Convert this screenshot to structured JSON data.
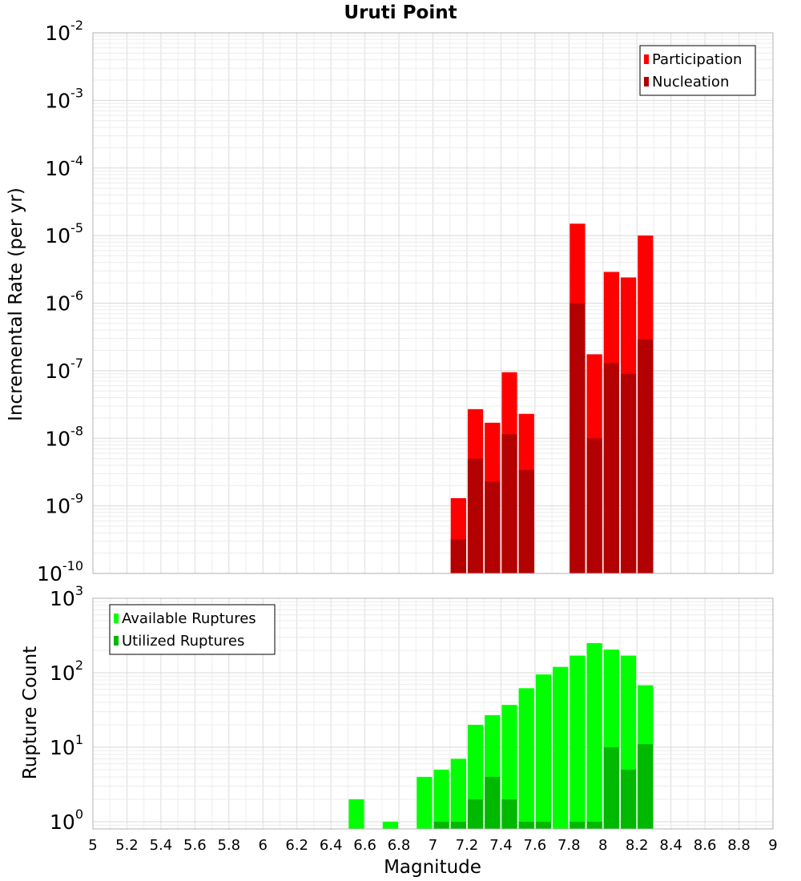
{
  "chart_data": [
    {
      "type": "bar",
      "title": "Uruti Point",
      "ylabel": "Incremental Rate (per yr)",
      "xlabel": "",
      "yscale": "log",
      "ylim": [
        1e-10,
        0.01
      ],
      "xlim": [
        5,
        9
      ],
      "legend_position": "top-right",
      "x": [
        7.15,
        7.25,
        7.35,
        7.45,
        7.55,
        7.85,
        7.95,
        8.05,
        8.15,
        8.25
      ],
      "series": [
        {
          "name": "Participation",
          "color": "#ff0000",
          "values": [
            1.3e-09,
            2.7e-08,
            1.7e-08,
            9.5e-08,
            2.3e-08,
            1.5e-05,
            1.75e-07,
            2.9e-06,
            2.4e-06,
            1e-05
          ]
        },
        {
          "name": "Nucleation",
          "color": "#b30000",
          "values": [
            3.2e-10,
            5e-09,
            2.3e-09,
            1.15e-08,
            3.4e-09,
            1e-06,
            1e-08,
            1.3e-07,
            9e-08,
            2.9e-07
          ]
        }
      ],
      "ytick_exponents": [
        "-10",
        "-9",
        "-8",
        "-7",
        "-6",
        "-5",
        "-4",
        "-3",
        "-2"
      ],
      "grid": true
    },
    {
      "type": "bar",
      "ylabel": "Rupture Count",
      "xlabel": "Magnitude",
      "yscale": "log",
      "ylim": [
        0.8,
        1000
      ],
      "xlim": [
        5,
        9
      ],
      "legend_position": "top-left",
      "x": [
        6.55,
        6.75,
        6.95,
        7.05,
        7.15,
        7.25,
        7.35,
        7.45,
        7.55,
        7.65,
        7.75,
        7.85,
        7.95,
        8.05,
        8.15,
        8.25
      ],
      "series": [
        {
          "name": "Available Ruptures",
          "color": "#00ff00",
          "values": [
            2,
            1,
            4,
            5,
            7,
            20,
            27,
            37,
            62,
            95,
            120,
            170,
            250,
            205,
            170,
            68
          ]
        },
        {
          "name": "Utilized Ruptures",
          "color": "#00b800",
          "values": [
            0,
            0,
            0,
            1,
            1,
            2,
            4,
            2,
            1,
            1,
            0,
            1,
            1,
            10,
            5,
            11
          ]
        }
      ],
      "ytick_exponents": [
        "0",
        "1",
        "2",
        "3"
      ],
      "xticks": [
        "5",
        "5.2",
        "5.4",
        "5.6",
        "5.8",
        "6",
        "6.2",
        "6.4",
        "6.6",
        "6.8",
        "7",
        "7.2",
        "7.4",
        "7.6",
        "7.8",
        "8",
        "8.2",
        "8.4",
        "8.6",
        "8.8",
        "9"
      ],
      "grid": true
    }
  ]
}
